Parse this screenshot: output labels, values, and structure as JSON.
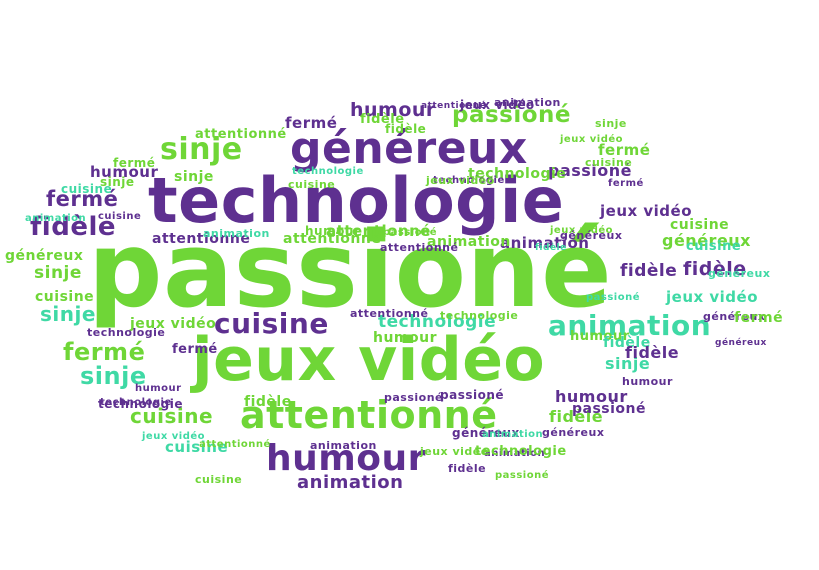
{
  "colors": {
    "green": "#6fd637",
    "purple": "#5e3090",
    "teal": "#3fd9a5",
    "background": "#ffffff"
  },
  "words": [
    {
      "text": "passioné",
      "color": "green"
    },
    {
      "text": "technologie",
      "color": "purple"
    },
    {
      "text": "jeux vidéo",
      "color": "green"
    },
    {
      "text": "généreux",
      "color": "purple"
    },
    {
      "text": "attentionné",
      "color": "green"
    },
    {
      "text": "humour",
      "color": "purple"
    },
    {
      "text": "cuisine",
      "color": "purple"
    },
    {
      "text": "animation",
      "color": "teal"
    },
    {
      "text": "sinje",
      "color": "green"
    },
    {
      "text": "fidèle",
      "color": "purple"
    },
    {
      "text": "fermé",
      "color": "purple"
    },
    {
      "text": "humour",
      "color": "purple"
    },
    {
      "text": "passioné",
      "color": "green"
    },
    {
      "text": "fermé",
      "color": "green"
    },
    {
      "text": "sinje",
      "color": "teal"
    },
    {
      "text": "cuisine",
      "color": "green"
    },
    {
      "text": "technologie",
      "color": "teal"
    },
    {
      "text": "animation",
      "color": "purple"
    },
    {
      "text": "attentionné",
      "color": "green"
    },
    {
      "text": "attentionné",
      "color": "purple"
    },
    {
      "text": "animation",
      "color": "purple"
    },
    {
      "text": "généreux",
      "color": "green"
    },
    {
      "text": "fidèle",
      "color": "purple"
    },
    {
      "text": "jeux vidéo",
      "color": "teal"
    },
    {
      "text": "sinje",
      "color": "green"
    },
    {
      "text": "sinje",
      "color": "teal"
    },
    {
      "text": "humour",
      "color": "purple"
    },
    {
      "text": "fidèle",
      "color": "green"
    },
    {
      "text": "cuisine",
      "color": "green"
    },
    {
      "text": "cuisine",
      "color": "teal"
    },
    {
      "text": "fidèle",
      "color": "green"
    },
    {
      "text": "humour",
      "color": "green"
    },
    {
      "text": "passioné",
      "color": "purple"
    },
    {
      "text": "généreux",
      "color": "green"
    },
    {
      "text": "fermé",
      "color": "green"
    },
    {
      "text": "fidèle",
      "color": "teal"
    },
    {
      "text": "sinje",
      "color": "teal"
    },
    {
      "text": "humour",
      "color": "purple"
    },
    {
      "text": "fermé",
      "color": "purple"
    },
    {
      "text": "fidèle",
      "color": "purple"
    },
    {
      "text": "sinje",
      "color": "green"
    },
    {
      "text": "cuisine",
      "color": "green"
    },
    {
      "text": "cuisine",
      "color": "teal"
    },
    {
      "text": "jeux vidéo",
      "color": "purple"
    },
    {
      "text": "humour",
      "color": "green"
    },
    {
      "text": "sinje",
      "color": "green"
    },
    {
      "text": "fermé",
      "color": "green"
    },
    {
      "text": "technologie",
      "color": "green"
    },
    {
      "text": "cuisine",
      "color": "green"
    },
    {
      "text": "humour",
      "color": "purple"
    },
    {
      "text": "fidèle",
      "color": "green"
    },
    {
      "text": "fidèle",
      "color": "green"
    },
    {
      "text": "animation",
      "color": "green"
    },
    {
      "text": "technologie",
      "color": "purple"
    },
    {
      "text": "attentionné",
      "color": "green"
    },
    {
      "text": "fidèle",
      "color": "purple"
    },
    {
      "text": "sinje",
      "color": "green"
    },
    {
      "text": "passioné",
      "color": "purple"
    },
    {
      "text": "généreux",
      "color": "purple"
    },
    {
      "text": "technologie",
      "color": "purple"
    },
    {
      "text": "fermé",
      "color": "purple"
    },
    {
      "text": "fermé",
      "color": "green"
    },
    {
      "text": "jeux vidéo",
      "color": "green"
    },
    {
      "text": "attentionné",
      "color": "purple"
    },
    {
      "text": "humour",
      "color": "green"
    },
    {
      "text": "humour",
      "color": "purple"
    },
    {
      "text": "généreux",
      "color": "purple"
    },
    {
      "text": "fidèle",
      "color": "purple"
    },
    {
      "text": "passioné",
      "color": "teal"
    },
    {
      "text": "animation",
      "color": "purple"
    },
    {
      "text": "attentionné",
      "color": "green"
    },
    {
      "text": "animation",
      "color": "teal"
    },
    {
      "text": "animation",
      "color": "teal"
    },
    {
      "text": "jeux vidéo",
      "color": "purple"
    },
    {
      "text": "passioné",
      "color": "purple"
    },
    {
      "text": "cuisine",
      "color": "green"
    },
    {
      "text": "jeux vidéo",
      "color": "green"
    },
    {
      "text": "technologie",
      "color": "teal"
    },
    {
      "text": "passioné",
      "color": "purple"
    },
    {
      "text": "jeux vidéo",
      "color": "green"
    },
    {
      "text": "généreux",
      "color": "teal"
    },
    {
      "text": "cuisine",
      "color": "purple"
    },
    {
      "text": "technologie",
      "color": "purple"
    },
    {
      "text": "technologie",
      "color": "green"
    },
    {
      "text": "attentionné",
      "color": "green"
    },
    {
      "text": "attentionné",
      "color": "purple"
    },
    {
      "text": "généreux",
      "color": "purple"
    },
    {
      "text": "cuisine",
      "color": "teal"
    },
    {
      "text": "animation",
      "color": "teal"
    },
    {
      "text": "fermé",
      "color": "purple"
    },
    {
      "text": "généreux",
      "color": "purple"
    },
    {
      "text": "cuisine",
      "color": "green"
    },
    {
      "text": "attentionné",
      "color": "purple"
    },
    {
      "text": "animation",
      "color": "purple"
    },
    {
      "text": "jeux vidéo",
      "color": "teal"
    },
    {
      "text": "jeux vidéo",
      "color": "green"
    },
    {
      "text": "passioné",
      "color": "green"
    },
    {
      "text": "animation",
      "color": "purple"
    },
    {
      "text": "technologie",
      "color": "purple"
    },
    {
      "text": "passioné",
      "color": "green"
    },
    {
      "text": "technologie",
      "color": "green"
    },
    {
      "text": "jeux vidéo",
      "color": "green"
    },
    {
      "text": "généreux",
      "color": "purple"
    },
    {
      "text": "fidèle",
      "color": "teal"
    }
  ]
}
